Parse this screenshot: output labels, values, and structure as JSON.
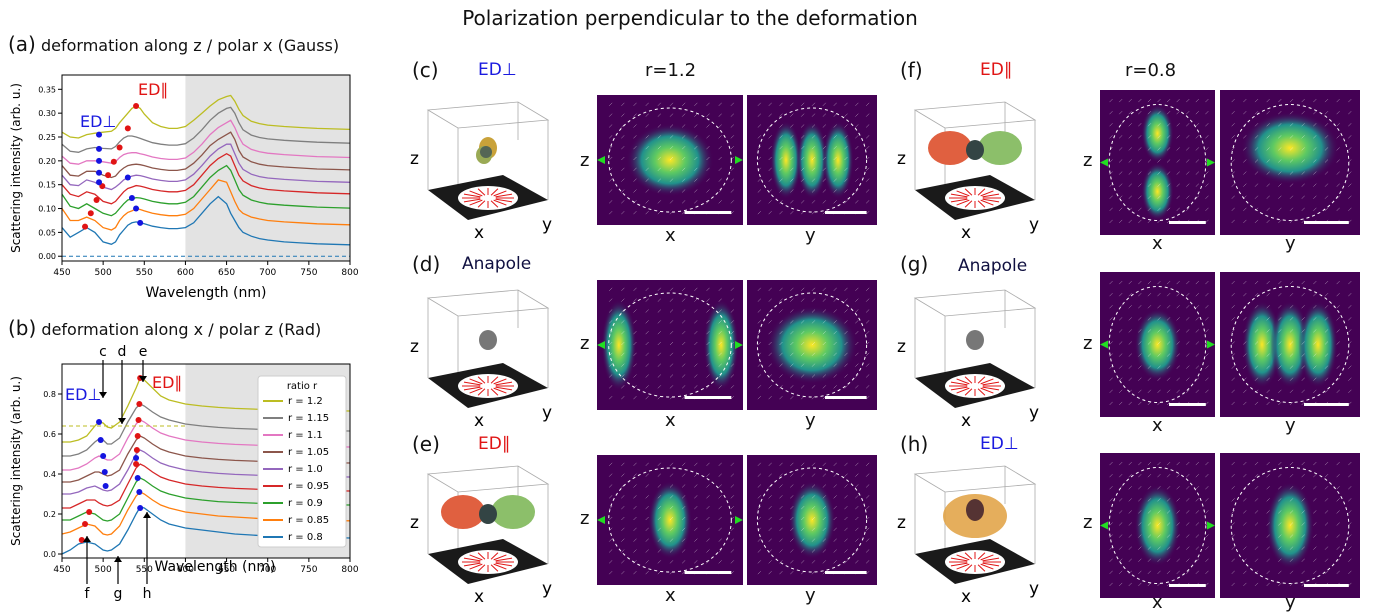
{
  "figure_title": "Polarization perpendicular to the deformation",
  "panels": {
    "a": {
      "letter": "(a)",
      "title": "deformation along z / polar x (Gauss)"
    },
    "b": {
      "letter": "(b)",
      "title": "deformation along x / polar z (Rad)"
    },
    "c": {
      "letter": "(c)",
      "label": "ED⊥",
      "ratio_label": "r=1.2"
    },
    "d": {
      "letter": "(d)",
      "label": "Anapole"
    },
    "e": {
      "letter": "(e)",
      "label": "ED∥"
    },
    "f": {
      "letter": "(f)",
      "label": "ED∥",
      "ratio_label": "r=0.8"
    },
    "g": {
      "letter": "(g)",
      "label": "Anapole"
    },
    "h": {
      "letter": "(h)",
      "label": "ED⊥"
    }
  },
  "axis_letters": {
    "x": "x",
    "y": "y",
    "z": "z"
  },
  "colors": {
    "series": [
      "#bcbd22",
      "#7f7f7f",
      "#e377c2",
      "#8c564b",
      "#9467bd",
      "#d62728",
      "#2ca02c",
      "#ff7f0e",
      "#1f77b4"
    ],
    "ed_parallel_marker": "#e01414",
    "ed_perp_marker": "#1414e0",
    "shaded_region": "#e3e3e3",
    "field_map_bg": "#440154"
  },
  "chart_data": [
    {
      "type": "line",
      "id": "a",
      "xlabel": "Wavelength (nm)",
      "ylabel": "Scattering intensity (arb. u.)",
      "xlim": [
        450,
        800
      ],
      "ylim": [
        -0.01,
        0.38
      ],
      "xticks": [
        450,
        500,
        550,
        600,
        650,
        700,
        750,
        800
      ],
      "yticks": [
        0.0,
        0.05,
        0.1,
        0.15,
        0.2,
        0.25,
        0.3,
        0.35
      ],
      "ytick_labels": [
        "0.00",
        "0.05",
        "0.10",
        "0.15",
        "0.20",
        "0.25",
        "0.30",
        "0.35"
      ],
      "shaded_x": [
        600,
        800
      ],
      "grid": false,
      "ed_parallel_label": "ED∥",
      "ed_perp_label": "ED⊥",
      "baseline_dashed": 0.0,
      "x": [
        450,
        460,
        470,
        480,
        490,
        500,
        510,
        515,
        520,
        525,
        530,
        535,
        540,
        545,
        550,
        560,
        570,
        580,
        590,
        600,
        610,
        620,
        630,
        640,
        650,
        655,
        660,
        665,
        670,
        680,
        690,
        700,
        720,
        740,
        760,
        780,
        800
      ],
      "series": [
        {
          "ratio": 0.8,
          "y": [
            0.06,
            0.04,
            0.05,
            0.06,
            0.05,
            0.03,
            0.025,
            0.03,
            0.045,
            0.055,
            0.065,
            0.07,
            0.072,
            0.07,
            0.068,
            0.063,
            0.06,
            0.058,
            0.058,
            0.06,
            0.07,
            0.09,
            0.11,
            0.125,
            0.11,
            0.09,
            0.075,
            0.06,
            0.05,
            0.042,
            0.037,
            0.034,
            0.03,
            0.028,
            0.026,
            0.025,
            0.024
          ]
        },
        {
          "ratio": 0.85,
          "y": [
            0.1,
            0.075,
            0.075,
            0.082,
            0.075,
            0.06,
            0.055,
            0.06,
            0.075,
            0.085,
            0.092,
            0.095,
            0.1,
            0.098,
            0.095,
            0.09,
            0.087,
            0.085,
            0.085,
            0.088,
            0.1,
            0.12,
            0.14,
            0.16,
            0.155,
            0.135,
            0.115,
            0.098,
            0.09,
            0.082,
            0.078,
            0.075,
            0.072,
            0.07,
            0.068,
            0.067,
            0.066
          ]
        },
        {
          "ratio": 0.9,
          "y": [
            0.13,
            0.105,
            0.1,
            0.11,
            0.1,
            0.09,
            0.085,
            0.09,
            0.1,
            0.11,
            0.118,
            0.12,
            0.123,
            0.122,
            0.12,
            0.115,
            0.112,
            0.11,
            0.11,
            0.113,
            0.125,
            0.145,
            0.165,
            0.18,
            0.19,
            0.18,
            0.16,
            0.14,
            0.128,
            0.118,
            0.113,
            0.11,
            0.107,
            0.105,
            0.103,
            0.102,
            0.101
          ]
        },
        {
          "ratio": 0.95,
          "y": [
            0.15,
            0.13,
            0.125,
            0.135,
            0.13,
            0.115,
            0.11,
            0.115,
            0.125,
            0.135,
            0.142,
            0.145,
            0.148,
            0.147,
            0.145,
            0.14,
            0.137,
            0.135,
            0.135,
            0.138,
            0.15,
            0.17,
            0.19,
            0.205,
            0.215,
            0.21,
            0.19,
            0.17,
            0.158,
            0.148,
            0.143,
            0.14,
            0.137,
            0.135,
            0.133,
            0.132,
            0.131
          ]
        },
        {
          "ratio": 1.0,
          "y": [
            0.17,
            0.15,
            0.148,
            0.16,
            0.155,
            0.145,
            0.14,
            0.145,
            0.152,
            0.16,
            0.165,
            0.168,
            0.17,
            0.169,
            0.167,
            0.162,
            0.159,
            0.157,
            0.157,
            0.16,
            0.172,
            0.19,
            0.21,
            0.225,
            0.235,
            0.235,
            0.215,
            0.195,
            0.182,
            0.172,
            0.167,
            0.164,
            0.161,
            0.159,
            0.157,
            0.156,
            0.155
          ]
        },
        {
          "ratio": 1.05,
          "y": [
            0.19,
            0.17,
            0.168,
            0.178,
            0.178,
            0.17,
            0.165,
            0.168,
            0.178,
            0.185,
            0.19,
            0.192,
            0.193,
            0.192,
            0.19,
            0.185,
            0.182,
            0.18,
            0.18,
            0.183,
            0.195,
            0.212,
            0.232,
            0.245,
            0.255,
            0.26,
            0.245,
            0.222,
            0.208,
            0.198,
            0.193,
            0.19,
            0.187,
            0.185,
            0.183,
            0.182,
            0.181
          ]
        },
        {
          "ratio": 1.1,
          "y": [
            0.21,
            0.195,
            0.193,
            0.2,
            0.2,
            0.198,
            0.195,
            0.198,
            0.207,
            0.213,
            0.216,
            0.217,
            0.217,
            0.215,
            0.213,
            0.208,
            0.205,
            0.203,
            0.203,
            0.206,
            0.218,
            0.235,
            0.255,
            0.27,
            0.28,
            0.285,
            0.27,
            0.25,
            0.235,
            0.224,
            0.219,
            0.216,
            0.213,
            0.211,
            0.209,
            0.208,
            0.207
          ]
        },
        {
          "ratio": 1.15,
          "y": [
            0.235,
            0.22,
            0.218,
            0.225,
            0.228,
            0.226,
            0.225,
            0.23,
            0.24,
            0.248,
            0.252,
            0.252,
            0.25,
            0.247,
            0.244,
            0.238,
            0.235,
            0.233,
            0.233,
            0.236,
            0.248,
            0.265,
            0.285,
            0.3,
            0.31,
            0.312,
            0.3,
            0.28,
            0.265,
            0.254,
            0.249,
            0.246,
            0.243,
            0.241,
            0.239,
            0.238,
            0.237
          ]
        },
        {
          "ratio": 1.2,
          "y": [
            0.26,
            0.25,
            0.248,
            0.255,
            0.258,
            0.26,
            0.262,
            0.268,
            0.28,
            0.29,
            0.3,
            0.31,
            0.315,
            0.31,
            0.298,
            0.28,
            0.272,
            0.268,
            0.268,
            0.272,
            0.285,
            0.3,
            0.315,
            0.328,
            0.335,
            0.337,
            0.325,
            0.308,
            0.295,
            0.283,
            0.278,
            0.275,
            0.272,
            0.27,
            0.268,
            0.267,
            0.266
          ]
        }
      ],
      "ed_parallel_points": [
        {
          "x": 478,
          "y": 0.062
        },
        {
          "x": 485,
          "y": 0.09
        },
        {
          "x": 492,
          "y": 0.118
        },
        {
          "x": 499,
          "y": 0.147
        },
        {
          "x": 506,
          "y": 0.17
        },
        {
          "x": 513,
          "y": 0.198
        },
        {
          "x": 520,
          "y": 0.228
        },
        {
          "x": 530,
          "y": 0.268
        },
        {
          "x": 540,
          "y": 0.315
        }
      ],
      "ed_perp_points": [
        {
          "x": 545,
          "y": 0.07
        },
        {
          "x": 540,
          "y": 0.1
        },
        {
          "x": 535,
          "y": 0.122
        },
        {
          "x": 530,
          "y": 0.165
        },
        {
          "x": 495,
          "y": 0.155
        },
        {
          "x": 495,
          "y": 0.175
        },
        {
          "x": 495,
          "y": 0.2
        },
        {
          "x": 495,
          "y": 0.225
        },
        {
          "x": 495,
          "y": 0.255
        }
      ]
    },
    {
      "type": "line",
      "id": "b",
      "xlabel": "Wavelength (nm)",
      "ylabel": "Scattering intensity (arb. u.)",
      "xlim": [
        450,
        800
      ],
      "ylim": [
        -0.02,
        0.95
      ],
      "xticks": [
        450,
        500,
        550,
        600,
        650,
        700,
        750,
        800
      ],
      "yticks": [
        0.0,
        0.2,
        0.4,
        0.6,
        0.8
      ],
      "ytick_labels": [
        "0.0",
        "0.2",
        "0.4",
        "0.6",
        "0.8"
      ],
      "shaded_x": [
        600,
        800
      ],
      "grid": false,
      "legend": {
        "title": "ratio r",
        "placement": "right",
        "entries": [
          "r = 1.2",
          "r = 1.15",
          "r = 1.1",
          "r = 1.05",
          "r = 1.0",
          "r = 0.95",
          "r = 0.9",
          "r = 0.85",
          "r = 0.8"
        ]
      },
      "ed_parallel_label": "ED∥",
      "ed_perp_label": "ED⊥",
      "hline_dashed": 0.64,
      "arrow_labels": {
        "top": [
          "c",
          "d",
          "e"
        ],
        "bottom": [
          "f",
          "g",
          "h"
        ]
      },
      "x": [
        450,
        460,
        470,
        480,
        490,
        495,
        500,
        505,
        510,
        520,
        530,
        540,
        545,
        550,
        560,
        570,
        580,
        590,
        600,
        620,
        640,
        660,
        680,
        700,
        720,
        740,
        760,
        780,
        800
      ],
      "series": [
        {
          "ratio": 0.8,
          "y": [
            0.0,
            0.02,
            0.05,
            0.06,
            0.05,
            0.035,
            0.02,
            0.015,
            0.02,
            0.05,
            0.12,
            0.2,
            0.235,
            0.23,
            0.2,
            0.17,
            0.15,
            0.14,
            0.13,
            0.12,
            0.11,
            0.1,
            0.095,
            0.09,
            0.087,
            0.085,
            0.083,
            0.082,
            0.08
          ]
        },
        {
          "ratio": 0.85,
          "y": [
            0.1,
            0.11,
            0.13,
            0.15,
            0.14,
            0.12,
            0.1,
            0.095,
            0.1,
            0.14,
            0.22,
            0.29,
            0.31,
            0.3,
            0.27,
            0.245,
            0.23,
            0.22,
            0.21,
            0.2,
            0.19,
            0.185,
            0.18,
            0.175,
            0.172,
            0.17,
            0.168,
            0.167,
            0.166
          ]
        },
        {
          "ratio": 0.9,
          "y": [
            0.17,
            0.17,
            0.19,
            0.21,
            0.2,
            0.185,
            0.17,
            0.165,
            0.17,
            0.2,
            0.28,
            0.36,
            0.38,
            0.37,
            0.34,
            0.315,
            0.3,
            0.29,
            0.28,
            0.27,
            0.262,
            0.258,
            0.255,
            0.252,
            0.25,
            0.248,
            0.247,
            0.246,
            0.245
          ]
        },
        {
          "ratio": 0.95,
          "y": [
            0.23,
            0.23,
            0.25,
            0.27,
            0.27,
            0.255,
            0.245,
            0.24,
            0.245,
            0.27,
            0.35,
            0.43,
            0.45,
            0.44,
            0.41,
            0.385,
            0.37,
            0.36,
            0.35,
            0.34,
            0.333,
            0.328,
            0.325,
            0.322,
            0.32,
            0.318,
            0.317,
            0.316,
            0.315
          ]
        },
        {
          "ratio": 1.0,
          "y": [
            0.3,
            0.3,
            0.31,
            0.33,
            0.34,
            0.33,
            0.32,
            0.315,
            0.32,
            0.35,
            0.42,
            0.5,
            0.52,
            0.51,
            0.48,
            0.455,
            0.44,
            0.43,
            0.42,
            0.41,
            0.403,
            0.398,
            0.395,
            0.392,
            0.39,
            0.388,
            0.387,
            0.386,
            0.385
          ]
        },
        {
          "ratio": 1.05,
          "y": [
            0.36,
            0.36,
            0.37,
            0.39,
            0.41,
            0.41,
            0.4,
            0.39,
            0.395,
            0.42,
            0.5,
            0.57,
            0.59,
            0.58,
            0.55,
            0.525,
            0.51,
            0.5,
            0.49,
            0.48,
            0.473,
            0.468,
            0.465,
            0.462,
            0.46,
            0.458,
            0.457,
            0.456,
            0.455
          ]
        },
        {
          "ratio": 1.1,
          "y": [
            0.42,
            0.42,
            0.43,
            0.45,
            0.48,
            0.49,
            0.48,
            0.47,
            0.47,
            0.5,
            0.58,
            0.65,
            0.67,
            0.66,
            0.63,
            0.605,
            0.59,
            0.58,
            0.57,
            0.56,
            0.553,
            0.548,
            0.545,
            0.542,
            0.54,
            0.538,
            0.537,
            0.536,
            0.535
          ]
        },
        {
          "ratio": 1.15,
          "y": [
            0.49,
            0.49,
            0.5,
            0.52,
            0.56,
            0.575,
            0.57,
            0.55,
            0.55,
            0.58,
            0.66,
            0.73,
            0.75,
            0.74,
            0.71,
            0.685,
            0.67,
            0.66,
            0.65,
            0.64,
            0.633,
            0.628,
            0.625,
            0.622,
            0.62,
            0.618,
            0.617,
            0.616,
            0.615
          ]
        },
        {
          "ratio": 1.2,
          "y": [
            0.56,
            0.56,
            0.57,
            0.59,
            0.64,
            0.66,
            0.655,
            0.635,
            0.63,
            0.66,
            0.74,
            0.83,
            0.88,
            0.87,
            0.83,
            0.79,
            0.77,
            0.76,
            0.75,
            0.74,
            0.733,
            0.728,
            0.725,
            0.722,
            0.72,
            0.718,
            0.717,
            0.716,
            0.715
          ]
        }
      ],
      "ed_parallel_points": [
        {
          "x": 474,
          "y": 0.07
        },
        {
          "x": 478,
          "y": 0.15
        },
        {
          "x": 483,
          "y": 0.21
        },
        {
          "x": 540,
          "y": 0.45
        },
        {
          "x": 541,
          "y": 0.52
        },
        {
          "x": 542,
          "y": 0.59
        },
        {
          "x": 543,
          "y": 0.67
        },
        {
          "x": 544,
          "y": 0.75
        },
        {
          "x": 545,
          "y": 0.88
        }
      ],
      "ed_perp_points": [
        {
          "x": 545,
          "y": 0.23
        },
        {
          "x": 544,
          "y": 0.31
        },
        {
          "x": 542,
          "y": 0.38
        },
        {
          "x": 540,
          "y": 0.48
        },
        {
          "x": 503,
          "y": 0.34
        },
        {
          "x": 502,
          "y": 0.41
        },
        {
          "x": 500,
          "y": 0.49
        },
        {
          "x": 497,
          "y": 0.57
        },
        {
          "x": 495,
          "y": 0.66
        }
      ]
    }
  ]
}
